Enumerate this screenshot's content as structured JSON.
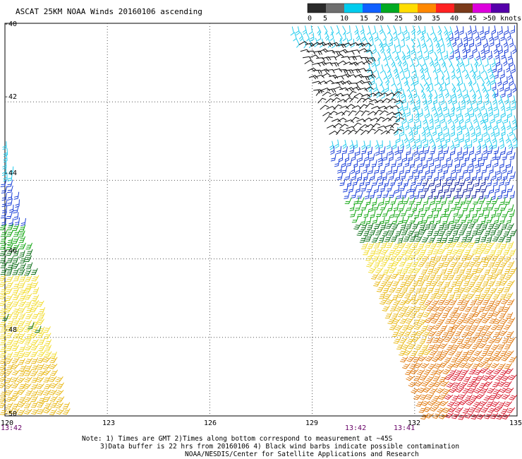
{
  "title": "ASCAT 25KM NOAA Winds 20160106 ascending",
  "legend": {
    "labels": [
      "0",
      "5",
      "10",
      "15",
      "20",
      "25",
      "30",
      "35",
      "40",
      "45",
      ">50 knots"
    ],
    "colors": [
      "#2a2a2a",
      "#6e6e6e",
      "#00ccee",
      "#1060ff",
      "#00aa22",
      "#ffdd00",
      "#ff8800",
      "#ff2222",
      "#7a3a1a",
      "#dd00dd",
      "#5500aa"
    ]
  },
  "axes": {
    "lon_ticks": [
      "120",
      "123",
      "126",
      "129",
      "132",
      "135"
    ],
    "lat_ticks": [
      "-40",
      "-42",
      "-44",
      "-46",
      "-48",
      "-50"
    ]
  },
  "times": {
    "left": "13:42",
    "swath_a": "13:42",
    "swath_b": "13:41"
  },
  "notes": {
    "line1": "Note: 1) Times are GMT 2)Times along bottom correspond to measurement at ~45S",
    "line2": "3)Data buffer is 22 hrs from 20160106 4) Black wind barbs indicate possible contamination",
    "line3": "NOAA/NESDIS/Center for Satellite Applications and Research"
  },
  "barb_colors": {
    "contaminated": "#111111",
    "cyan": "#22ccee",
    "blue": "#1a3fd8",
    "navy": "#0a1a9a",
    "green": "#12a612",
    "darkgreen": "#0c6e18",
    "yellow": "#f2dc30",
    "gold": "#e8b818",
    "orange": "#e07a10",
    "red": "#d81c30"
  }
}
